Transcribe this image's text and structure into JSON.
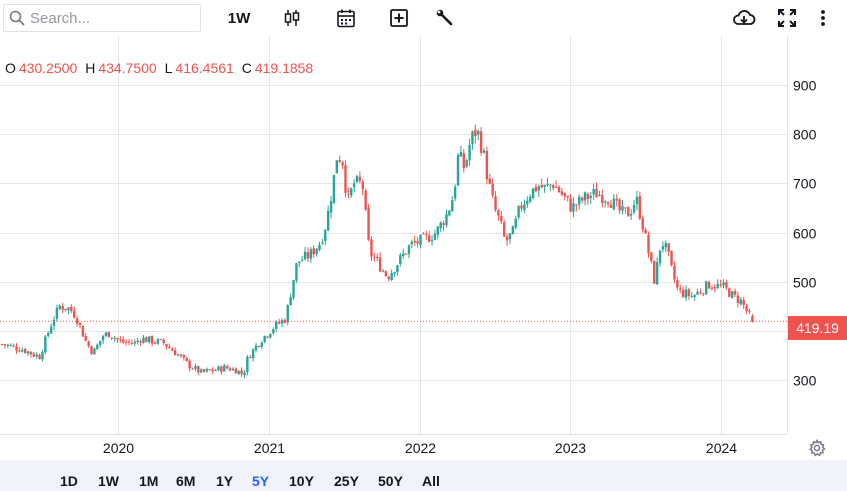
{
  "toolbar": {
    "search_placeholder": "Search...",
    "interval_label": "1W"
  },
  "ohlc": {
    "o_label": "O",
    "o_value": "430.2500",
    "h_label": "H",
    "h_value": "434.7500",
    "l_label": "L",
    "l_value": "416.4561",
    "c_label": "C",
    "c_value": "419.1858"
  },
  "last_price_label": "419.19",
  "range_buttons": [
    "1D",
    "1W",
    "1M",
    "6M",
    "1Y",
    "5Y",
    "10Y",
    "25Y",
    "50Y",
    "All"
  ],
  "active_range": "5Y",
  "colors": {
    "up": "#26a69a",
    "down": "#ef5350",
    "grid": "#e6e6e6",
    "active": "#2962ff"
  },
  "icons": [
    "search-icon",
    "candlestick-icon",
    "calendar-icon",
    "add-indicator-icon",
    "wrench-icon",
    "cloud-download-icon",
    "fullscreen-icon",
    "more-vertical-icon",
    "gear-icon"
  ],
  "chart_data": {
    "type": "candlestick",
    "interval": "1W",
    "y_ticks": [
      300,
      400,
      500,
      600,
      700,
      800,
      900
    ],
    "y_tick_labels": [
      "300",
      "400",
      "500",
      "600",
      "700",
      "800",
      "900"
    ],
    "ylim": [
      190,
      1000
    ],
    "x_ticks": [
      "2020-01-01",
      "2021-01-01",
      "2022-01-01",
      "2023-01-01",
      "2024-01-01"
    ],
    "x_tick_labels": [
      "2020",
      "2021",
      "2022",
      "2023",
      "2024"
    ],
    "xlim": [
      "2019-03-20",
      "2024-06-10"
    ],
    "grid": true,
    "last_close": 419.19,
    "last_bar": {
      "open": 430.25,
      "high": 434.75,
      "low": 416.4561,
      "close": 419.1858
    },
    "close_path": [
      [
        "2019-03-25",
        373
      ],
      [
        "2019-05-15",
        362
      ],
      [
        "2019-06-10",
        352
      ],
      [
        "2019-06-24",
        348
      ],
      [
        "2019-07-25",
        420
      ],
      [
        "2019-08-12",
        450
      ],
      [
        "2019-09-05",
        445
      ],
      [
        "2019-09-20",
        430
      ],
      [
        "2019-10-15",
        377
      ],
      [
        "2019-11-01",
        355
      ],
      [
        "2019-11-25",
        390
      ],
      [
        "2019-12-10",
        395
      ],
      [
        "2020-01-05",
        378
      ],
      [
        "2020-02-10",
        375
      ],
      [
        "2020-02-25",
        385
      ],
      [
        "2020-03-20",
        380
      ],
      [
        "2020-04-20",
        375
      ],
      [
        "2020-05-20",
        355
      ],
      [
        "2020-06-20",
        330
      ],
      [
        "2020-07-20",
        315
      ],
      [
        "2020-08-20",
        320
      ],
      [
        "2020-09-15",
        325
      ],
      [
        "2020-10-15",
        320
      ],
      [
        "2020-10-30",
        310
      ],
      [
        "2020-11-10",
        345
      ],
      [
        "2020-12-10",
        380
      ],
      [
        "2021-01-15",
        410
      ],
      [
        "2021-02-10",
        425
      ],
      [
        "2021-02-25",
        490
      ],
      [
        "2021-03-10",
        540
      ],
      [
        "2021-04-10",
        555
      ],
      [
        "2021-05-05",
        580
      ],
      [
        "2021-05-20",
        620
      ],
      [
        "2021-06-05",
        700
      ],
      [
        "2021-06-15",
        760
      ],
      [
        "2021-06-28",
        745
      ],
      [
        "2021-07-10",
        660
      ],
      [
        "2021-07-25",
        700
      ],
      [
        "2021-08-15",
        700
      ],
      [
        "2021-09-01",
        560
      ],
      [
        "2021-09-20",
        540
      ],
      [
        "2021-10-15",
        510
      ],
      [
        "2021-11-10",
        540
      ],
      [
        "2021-12-10",
        575
      ],
      [
        "2022-01-10",
        585
      ],
      [
        "2022-02-10",
        600
      ],
      [
        "2022-03-10",
        640
      ],
      [
        "2022-03-25",
        680
      ],
      [
        "2022-04-05",
        760
      ],
      [
        "2022-04-20",
        730
      ],
      [
        "2022-05-05",
        790
      ],
      [
        "2022-05-20",
        810
      ],
      [
        "2022-06-05",
        760
      ],
      [
        "2022-06-15",
        710
      ],
      [
        "2022-07-01",
        650
      ],
      [
        "2022-07-15",
        620
      ],
      [
        "2022-07-28",
        580
      ],
      [
        "2022-08-15",
        600
      ],
      [
        "2022-09-01",
        650
      ],
      [
        "2022-09-25",
        680
      ],
      [
        "2022-10-15",
        695
      ],
      [
        "2022-11-01",
        690
      ],
      [
        "2022-11-20",
        700
      ],
      [
        "2022-12-10",
        680
      ],
      [
        "2023-01-05",
        650
      ],
      [
        "2023-02-05",
        670
      ],
      [
        "2023-03-05",
        680
      ],
      [
        "2023-04-05",
        670
      ],
      [
        "2023-05-05",
        640
      ],
      [
        "2023-05-25",
        640
      ],
      [
        "2023-06-10",
        670
      ],
      [
        "2023-06-25",
        620
      ],
      [
        "2023-07-10",
        560
      ],
      [
        "2023-07-25",
        500
      ],
      [
        "2023-08-10",
        585
      ],
      [
        "2023-08-25",
        560
      ],
      [
        "2023-09-05",
        520
      ],
      [
        "2023-09-20",
        480
      ],
      [
        "2023-10-10",
        475
      ],
      [
        "2023-10-25",
        470
      ],
      [
        "2023-11-10",
        480
      ],
      [
        "2023-12-05",
        495
      ],
      [
        "2024-01-10",
        488
      ],
      [
        "2024-02-01",
        470
      ],
      [
        "2024-02-20",
        460
      ],
      [
        "2024-03-10",
        432
      ],
      [
        "2024-03-22",
        419
      ]
    ]
  }
}
